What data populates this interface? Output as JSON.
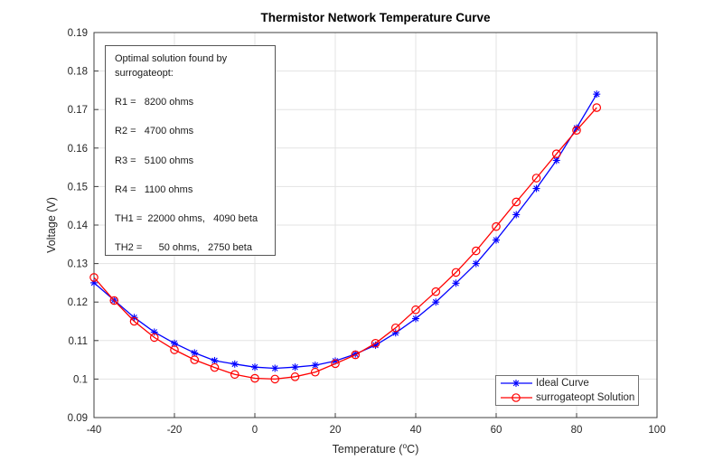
{
  "figure": {
    "background": "#ffffff",
    "grid_color": "#e3e3e3",
    "axis_color": "#3f3f3f",
    "text_color": "#262626"
  },
  "chart_data": {
    "type": "line",
    "title": "Thermistor Network Temperature Curve",
    "xlabel_prefix": "Temperature (",
    "xlabel_sup": "o",
    "xlabel_suffix": "C)",
    "ylabel": "Voltage (V)",
    "xlim": [
      -40,
      100
    ],
    "ylim": [
      0.09,
      0.19
    ],
    "grid": true,
    "legend_position": "south-east inside",
    "xticks": [
      -40,
      -20,
      0,
      20,
      40,
      60,
      80,
      100
    ],
    "xtick_labels": [
      "-40",
      "-20",
      "0",
      "20",
      "40",
      "60",
      "80",
      "100"
    ],
    "yticks": [
      0.09,
      0.1,
      0.11,
      0.12,
      0.13,
      0.14,
      0.15,
      0.16,
      0.17,
      0.18,
      0.19
    ],
    "ytick_labels": [
      "0.09",
      "0.1",
      "0.11",
      "0.12",
      "0.13",
      "0.14",
      "0.15",
      "0.16",
      "0.17",
      "0.18",
      "0.19"
    ],
    "x": [
      -40,
      -35,
      -30,
      -25,
      -20,
      -15,
      -10,
      -5,
      0,
      5,
      10,
      15,
      20,
      25,
      30,
      35,
      40,
      45,
      50,
      55,
      60,
      65,
      70,
      75,
      80,
      85
    ],
    "series": [
      {
        "name": "Ideal Curve",
        "color": "#0000ff",
        "marker": "asterisk",
        "values": [
          0.125,
          0.1205,
          0.116,
          0.1122,
          0.1093,
          0.1068,
          0.1048,
          0.1039,
          0.1031,
          0.1028,
          0.1031,
          0.1036,
          0.1047,
          0.1065,
          0.1088,
          0.112,
          0.1157,
          0.12,
          0.1249,
          0.13,
          0.1361,
          0.1427,
          0.1495,
          0.1568,
          0.1652,
          0.174
        ]
      },
      {
        "name": "surrogateopt Solution",
        "color": "#ff0000",
        "marker": "circle",
        "values": [
          0.1264,
          0.1204,
          0.115,
          0.1108,
          0.1076,
          0.105,
          0.103,
          0.1012,
          0.1002,
          0.1,
          0.1006,
          0.1018,
          0.104,
          0.1063,
          0.1093,
          0.1133,
          0.118,
          0.1227,
          0.1277,
          0.1333,
          0.1396,
          0.146,
          0.1522,
          0.1585,
          0.1646,
          0.1705
        ]
      }
    ]
  },
  "annotation": {
    "lines": [
      "Optimal solution found by",
      "surrogateopt:",
      "",
      "R1 =   8200 ohms",
      "",
      "R2 =   4700 ohms",
      "",
      "R3 =   5100 ohms",
      "",
      "R4 =   1100 ohms",
      "",
      "TH1 =  22000 ohms,   4090 beta",
      "",
      "TH2 =      50 ohms,   2750 beta"
    ]
  }
}
